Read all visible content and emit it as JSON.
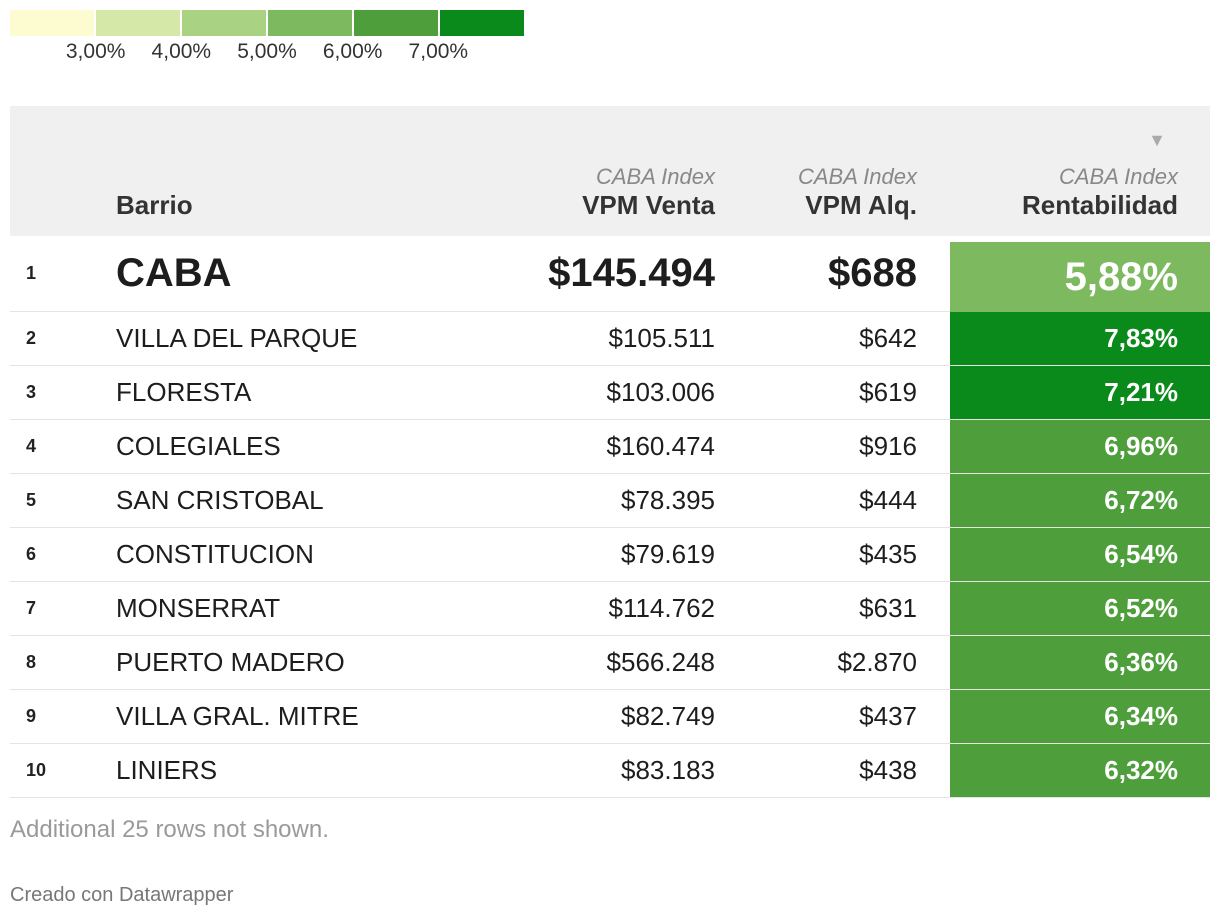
{
  "legend": {
    "colors": [
      "#fdfbd0",
      "#d5e8a8",
      "#a9d283",
      "#7db95f",
      "#4e9f3c",
      "#0a8a1a"
    ],
    "ticks": [
      "3,00%",
      "4,00%",
      "5,00%",
      "6,00%",
      "7,00%"
    ]
  },
  "header": {
    "barrio": "Barrio",
    "venta_sub": "CABA Index",
    "venta": "VPM Venta",
    "alq_sub": "CABA Index",
    "alq": "VPM Alq.",
    "rent_sub": "CABA Index",
    "rent": "Rentabilidad",
    "sort_icon": "▼"
  },
  "chart_data": {
    "type": "table",
    "columns": [
      "",
      "Barrio",
      "VPM Venta",
      "VPM Alq.",
      "Rentabilidad"
    ],
    "rows": [
      {
        "rank": "1",
        "barrio": "CABA",
        "venta": "$145.494",
        "alq": "$688",
        "rent": "5,88%",
        "rent_value": 5.88,
        "color": "#7db95f"
      },
      {
        "rank": "2",
        "barrio": "VILLA DEL PARQUE",
        "venta": "$105.511",
        "alq": "$642",
        "rent": "7,83%",
        "rent_value": 7.83,
        "color": "#0a8a1a"
      },
      {
        "rank": "3",
        "barrio": "FLORESTA",
        "venta": "$103.006",
        "alq": "$619",
        "rent": "7,21%",
        "rent_value": 7.21,
        "color": "#0a8a1a"
      },
      {
        "rank": "4",
        "barrio": "COLEGIALES",
        "venta": "$160.474",
        "alq": "$916",
        "rent": "6,96%",
        "rent_value": 6.96,
        "color": "#4e9f3c"
      },
      {
        "rank": "5",
        "barrio": "SAN CRISTOBAL",
        "venta": "$78.395",
        "alq": "$444",
        "rent": "6,72%",
        "rent_value": 6.72,
        "color": "#4e9f3c"
      },
      {
        "rank": "6",
        "barrio": "CONSTITUCION",
        "venta": "$79.619",
        "alq": "$435",
        "rent": "6,54%",
        "rent_value": 6.54,
        "color": "#4e9f3c"
      },
      {
        "rank": "7",
        "barrio": "MONSERRAT",
        "venta": "$114.762",
        "alq": "$631",
        "rent": "6,52%",
        "rent_value": 6.52,
        "color": "#4e9f3c"
      },
      {
        "rank": "8",
        "barrio": "PUERTO MADERO",
        "venta": "$566.248",
        "alq": "$2.870",
        "rent": "6,36%",
        "rent_value": 6.36,
        "color": "#4e9f3c"
      },
      {
        "rank": "9",
        "barrio": "VILLA GRAL. MITRE",
        "venta": "$82.749",
        "alq": "$437",
        "rent": "6,34%",
        "rent_value": 6.34,
        "color": "#4e9f3c"
      },
      {
        "rank": "10",
        "barrio": "LINIERS",
        "venta": "$83.183",
        "alq": "$438",
        "rent": "6,32%",
        "rent_value": 6.32,
        "color": "#4e9f3c"
      }
    ]
  },
  "footer": {
    "note": "Additional 25 rows not shown.",
    "credit": "Creado con Datawrapper"
  }
}
